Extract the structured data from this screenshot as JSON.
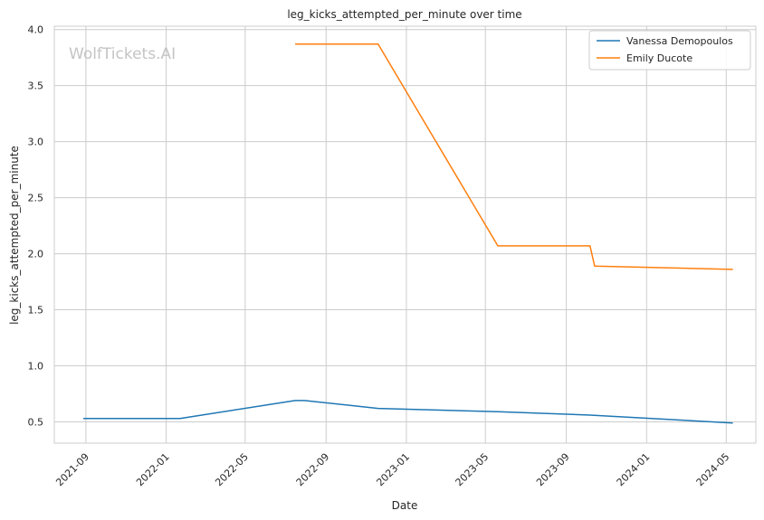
{
  "chart_data": {
    "type": "line",
    "title": "leg_kicks_attempted_per_minute over time",
    "xlabel": "Date",
    "ylabel": "leg_kicks_attempted_per_minute",
    "watermark": "WolfTickets.AI",
    "xlim": [
      "2021-07-15",
      "2024-06-15"
    ],
    "ylim": [
      0.31,
      4.03
    ],
    "x_ticks": [
      "2021-09",
      "2022-01",
      "2022-05",
      "2022-09",
      "2023-01",
      "2023-05",
      "2023-09",
      "2024-01",
      "2024-05"
    ],
    "y_ticks": [
      0.5,
      1.0,
      1.5,
      2.0,
      2.5,
      3.0,
      3.5,
      4.0
    ],
    "y_tick_labels": [
      "0.5",
      "1.0",
      "1.5",
      "2.0",
      "2.5",
      "3.0",
      "3.5",
      "4.0"
    ],
    "grid": true,
    "legend_position": "top-right",
    "series": [
      {
        "name": "Vanessa Demopoulos",
        "color": "#1f77b4",
        "x": [
          "2021-08-28",
          "2022-01-22",
          "2022-07-16",
          "2022-07-30",
          "2022-11-19",
          "2023-05-20",
          "2023-10-07",
          "2024-05-11"
        ],
        "y": [
          0.53,
          0.53,
          0.69,
          0.69,
          0.62,
          0.59,
          0.56,
          0.49
        ]
      },
      {
        "name": "Emily Ducote",
        "color": "#ff7f0e",
        "x": [
          "2022-07-16",
          "2022-11-19",
          "2023-05-20",
          "2023-10-07",
          "2023-10-14",
          "2024-05-11"
        ],
        "y": [
          3.87,
          3.87,
          2.07,
          2.07,
          1.89,
          1.86
        ]
      }
    ]
  }
}
